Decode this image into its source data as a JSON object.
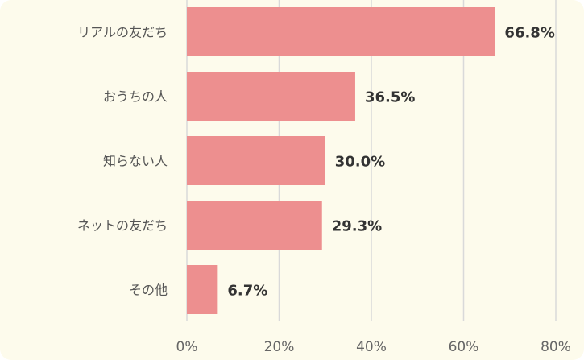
{
  "chart_data": {
    "type": "bar",
    "orientation": "horizontal",
    "categories": [
      "リアルの友だち",
      "おうちの人",
      "知らない人",
      "ネットの友だち",
      "その他"
    ],
    "values": [
      66.8,
      36.5,
      30.0,
      29.3,
      6.7
    ],
    "value_labels": [
      "66.8%",
      "36.5%",
      "30.0%",
      "29.3%",
      "6.7%"
    ],
    "xlim": [
      0,
      80
    ],
    "x_ticks": [
      0,
      20,
      40,
      60,
      80
    ],
    "x_tick_labels": [
      "0%",
      "20%",
      "40%",
      "60%",
      "80%"
    ],
    "grid": "vertical",
    "colors": {
      "bar": "#ed8f8f",
      "background": "#fdfbec",
      "grid": "#d9d9d9"
    }
  }
}
